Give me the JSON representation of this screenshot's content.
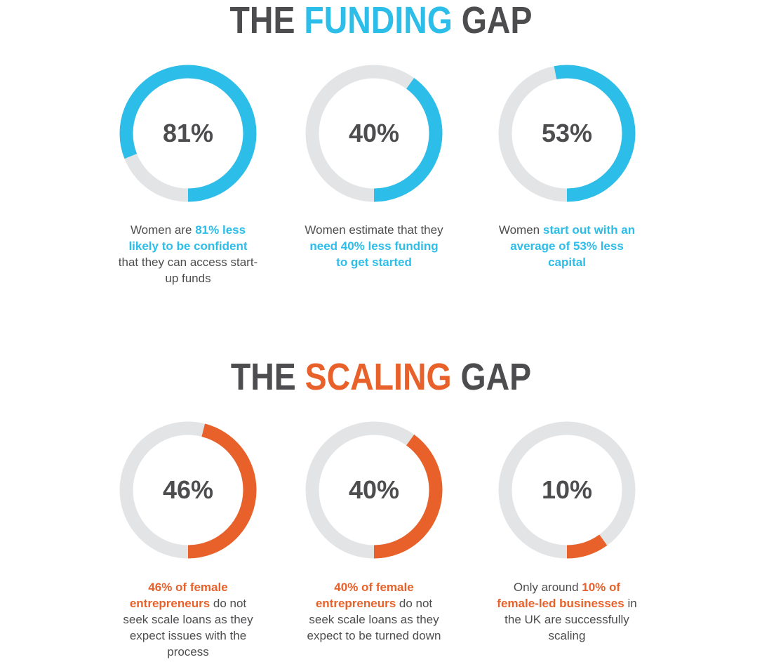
{
  "colors": {
    "text": "#4d4d4f",
    "funding_accent": "#2dbde9",
    "scaling_accent": "#e8612a",
    "track": "#e3e4e6"
  },
  "funding": {
    "title": {
      "pre": "THE ",
      "accent": "FUNDING",
      "post": " GAP"
    }
  },
  "scaling": {
    "title": {
      "pre": "THE ",
      "accent": "SCALING",
      "post": " GAP"
    }
  },
  "chart_data": [
    {
      "type": "pie",
      "group": "funding",
      "value": 81,
      "label": "81%",
      "caption": [
        {
          "text": "Women are ",
          "hl": false
        },
        {
          "text": "81% less likely to be confident",
          "hl": true
        },
        {
          "text": " that they can access start-up funds",
          "hl": false
        }
      ]
    },
    {
      "type": "pie",
      "group": "funding",
      "value": 40,
      "label": "40%",
      "caption": [
        {
          "text": "Women estimate that they ",
          "hl": false
        },
        {
          "text": "need 40% less funding to get started",
          "hl": true
        }
      ]
    },
    {
      "type": "pie",
      "group": "funding",
      "value": 53,
      "label": "53%",
      "caption": [
        {
          "text": "Women ",
          "hl": false
        },
        {
          "text": "start out with an average of 53% less capital",
          "hl": true
        }
      ]
    },
    {
      "type": "pie",
      "group": "scaling",
      "value": 46,
      "label": "46%",
      "caption": [
        {
          "text": "46% of female entrepreneurs",
          "hl": true
        },
        {
          "text": " do not seek scale loans as they expect issues with the process",
          "hl": false
        }
      ]
    },
    {
      "type": "pie",
      "group": "scaling",
      "value": 40,
      "label": "40%",
      "caption": [
        {
          "text": "40% of female entrepreneurs",
          "hl": true
        },
        {
          "text": " do not seek scale loans as they expect to be turned down",
          "hl": false
        }
      ]
    },
    {
      "type": "pie",
      "group": "scaling",
      "value": 10,
      "label": "10%",
      "caption": [
        {
          "text": "Only around ",
          "hl": false
        },
        {
          "text": "10% of female-led businesses",
          "hl": true
        },
        {
          "text": " in the UK are successfully scaling",
          "hl": false
        }
      ]
    }
  ]
}
